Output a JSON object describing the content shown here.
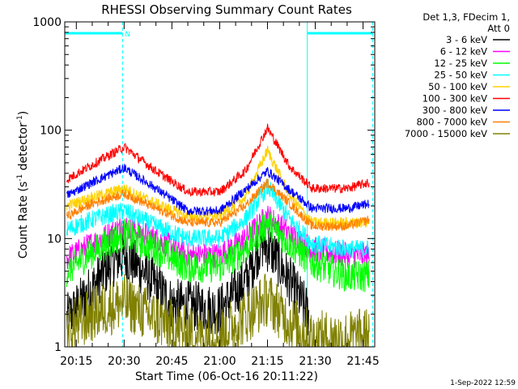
{
  "chart_data": {
    "type": "line",
    "title": "RHESSI Observing Summary Count Rates",
    "xlabel": "Start Time (06-Oct-16 20:11:22)",
    "ylabel_main": "Count Rate (s",
    "ylabel_sup1": "-1",
    "ylabel_mid": " detector",
    "ylabel_sup2": "-1",
    "ylabel_end": ")",
    "y_scale": "log",
    "ylim": [
      1,
      1000
    ],
    "xlim": [
      "20:11:22",
      "21:48:40"
    ],
    "x_ticks": [
      "20:15",
      "20:30",
      "20:45",
      "21:00",
      "21:15",
      "21:30",
      "21:45"
    ],
    "y_ticks": [
      "1",
      "10",
      "100",
      "1000"
    ],
    "legend_header": [
      "Det 1,3, FDecim 1,",
      "Att 0"
    ],
    "legend_position": "top-right, outside plot",
    "series": [
      {
        "name": "3 - 6 keV",
        "color": "#000000",
        "x": [
          "20:12",
          "20:20",
          "20:26",
          "20:30",
          "20:36",
          "20:45",
          "21:00",
          "21:08",
          "21:13",
          "21:16",
          "21:22",
          "21:28"
        ],
        "y": [
          1.8,
          3.5,
          6,
          7,
          5,
          2.5,
          2.2,
          4,
          9,
          8,
          4,
          2
        ]
      },
      {
        "name": "6 - 12 keV",
        "color": "#ff00ff",
        "x": [
          "20:12",
          "20:20",
          "20:30",
          "20:40",
          "20:50",
          "21:00",
          "21:08",
          "21:15",
          "21:22",
          "21:29",
          "21:40",
          "21:47"
        ],
        "y": [
          6.5,
          9,
          13,
          10,
          7,
          7,
          10,
          16,
          11,
          8,
          7,
          7
        ]
      },
      {
        "name": "12 - 25 keV",
        "color": "#00ff00",
        "x": [
          "20:12",
          "20:20",
          "20:30",
          "20:40",
          "20:50",
          "21:00",
          "21:08",
          "21:15",
          "21:22",
          "21:29",
          "21:40",
          "21:47"
        ],
        "y": [
          5,
          7.5,
          11,
          8,
          5.5,
          5.5,
          8,
          14,
          9,
          6,
          4.5,
          4.5
        ]
      },
      {
        "name": "25 - 50 keV",
        "color": "#00ffff",
        "x": [
          "20:12",
          "20:20",
          "20:30",
          "20:40",
          "20:50",
          "21:00",
          "21:08",
          "21:15",
          "21:22",
          "21:29",
          "21:40",
          "21:47"
        ],
        "y": [
          12,
          15,
          18,
          13,
          10,
          10,
          15,
          30,
          15,
          9,
          8,
          8
        ]
      },
      {
        "name": "50 - 100 keV",
        "color": "#ffd000",
        "x": [
          "20:12",
          "20:20",
          "20:30",
          "20:40",
          "20:50",
          "21:00",
          "21:08",
          "21:15",
          "21:22",
          "21:29",
          "21:40",
          "21:47"
        ],
        "y": [
          20,
          24,
          29,
          21,
          16,
          16,
          24,
          65,
          25,
          14,
          14,
          14
        ]
      },
      {
        "name": "100 - 300 keV",
        "color": "#ff0000",
        "x": [
          "20:12",
          "20:20",
          "20:30",
          "20:40",
          "20:50",
          "21:00",
          "21:08",
          "21:15",
          "21:22",
          "21:29",
          "21:40",
          "21:47"
        ],
        "y": [
          35,
          48,
          70,
          42,
          27,
          27,
          42,
          105,
          46,
          29,
          29,
          33
        ]
      },
      {
        "name": "300 - 800 keV",
        "color": "#0000ff",
        "x": [
          "20:12",
          "20:20",
          "20:30",
          "20:40",
          "20:50",
          "21:00",
          "21:08",
          "21:15",
          "21:22",
          "21:29",
          "21:40",
          "21:47"
        ],
        "y": [
          25,
          33,
          45,
          29,
          18,
          18,
          28,
          42,
          28,
          19,
          19,
          21
        ]
      },
      {
        "name": "800 - 7000 keV",
        "color": "#ff8000",
        "x": [
          "20:12",
          "20:20",
          "20:30",
          "20:40",
          "20:50",
          "21:00",
          "21:08",
          "21:15",
          "21:22",
          "21:29",
          "21:40",
          "21:47"
        ],
        "y": [
          16,
          21,
          26,
          19,
          14,
          14,
          20,
          33,
          21,
          13,
          13,
          15
        ]
      },
      {
        "name": "7000 - 15000 keV",
        "color": "#808000",
        "x": [
          "20:12",
          "20:20",
          "20:30",
          "20:40",
          "20:50",
          "21:00",
          "21:08",
          "21:15",
          "21:22",
          "21:29",
          "21:40",
          "21:47"
        ],
        "y": [
          1.4,
          2,
          2.6,
          1.8,
          1.3,
          1.3,
          1.9,
          2.8,
          1.7,
          1.2,
          1.2,
          1.3
        ]
      }
    ],
    "annotations": {
      "night_label": "N",
      "night_periods": [
        [
          "20:11:22",
          "20:29:30"
        ],
        [
          "21:27:30",
          "21:48:00"
        ]
      ],
      "night_color": "#00ffff"
    },
    "grid": false
  },
  "footer": {
    "date_stamp": "1-Sep-2022 12:59"
  }
}
